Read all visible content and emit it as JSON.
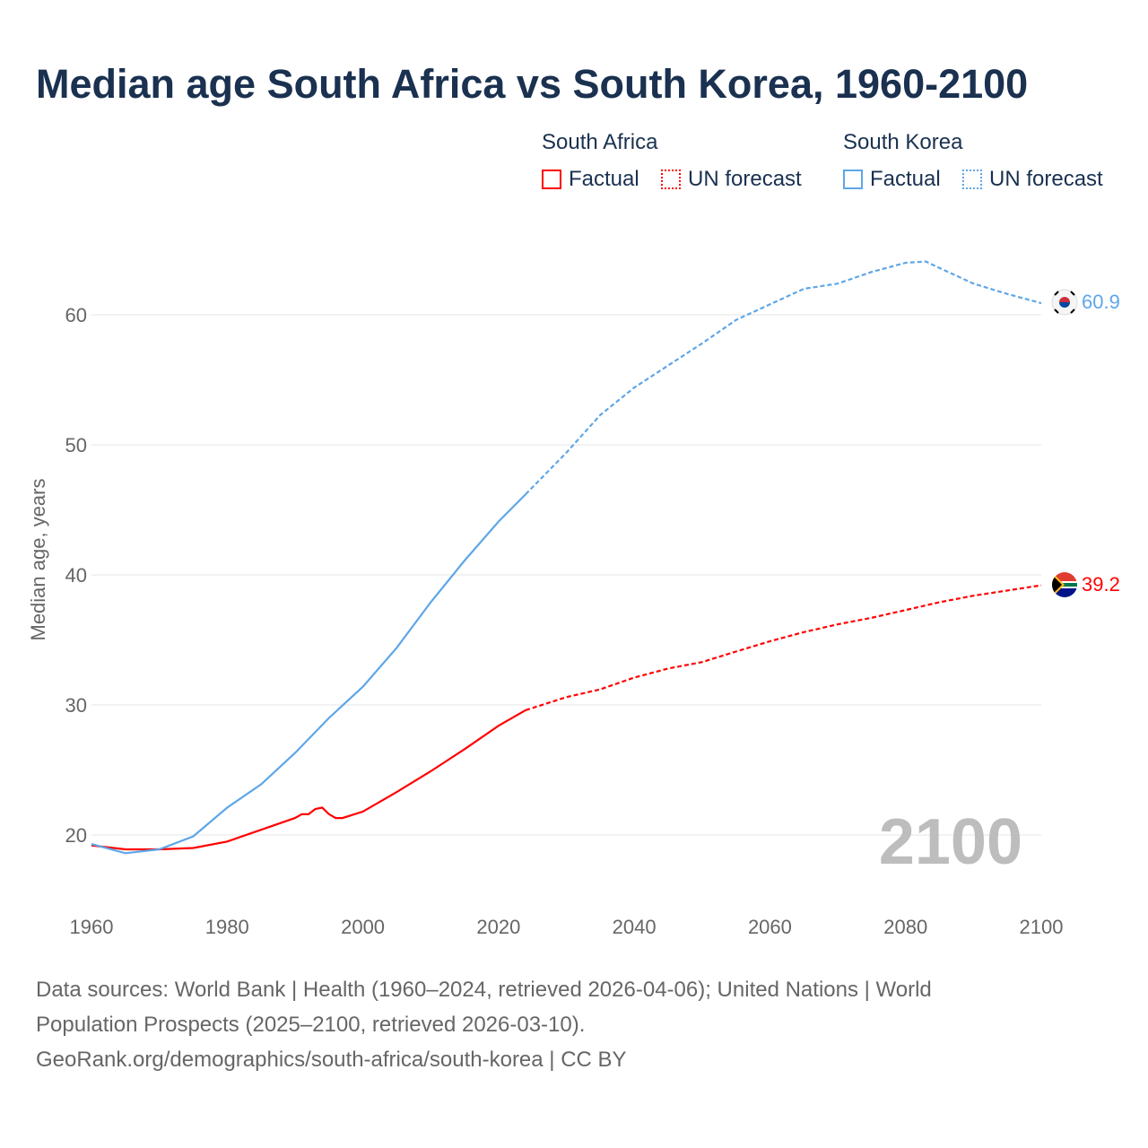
{
  "chart_data": {
    "type": "line",
    "title": "Median age South Africa vs South Korea, 1960-2100",
    "ylabel": "Median age, years",
    "xlabel": "",
    "xlim": [
      1960,
      2100
    ],
    "ylim": [
      15,
      68
    ],
    "x_ticks": [
      "1960",
      "1980",
      "2000",
      "2020",
      "2040",
      "2060",
      "2080",
      "2100"
    ],
    "y_ticks": [
      "20",
      "30",
      "40",
      "50",
      "60"
    ],
    "grid": true,
    "year_watermark": "2100",
    "forecast_start": 2024,
    "legend": {
      "groups": [
        {
          "name": "South Africa",
          "factual": "Factual",
          "forecast": "UN forecast",
          "color": "#ff0000"
        },
        {
          "name": "South Korea",
          "factual": "Factual",
          "forecast": "UN forecast",
          "color": "#5ea6e8"
        }
      ]
    },
    "series": [
      {
        "name": "South Africa",
        "color": "#ff0000",
        "end_label": "39.2",
        "x": [
          1960,
          1965,
          1970,
          1975,
          1980,
          1985,
          1990,
          1991,
          1992,
          1993,
          1994,
          1995,
          1996,
          1997,
          2000,
          2005,
          2010,
          2015,
          2020,
          2024,
          2030,
          2035,
          2040,
          2045,
          2050,
          2055,
          2060,
          2065,
          2070,
          2075,
          2080,
          2085,
          2090,
          2095,
          2100
        ],
        "values": [
          19.2,
          18.9,
          18.9,
          19.0,
          19.5,
          20.4,
          21.3,
          21.6,
          21.6,
          22.0,
          22.1,
          21.6,
          21.3,
          21.3,
          21.8,
          23.3,
          24.9,
          26.6,
          28.4,
          29.6,
          30.6,
          31.2,
          32.1,
          32.8,
          33.3,
          34.1,
          34.9,
          35.6,
          36.2,
          36.7,
          37.3,
          37.9,
          38.4,
          38.8,
          39.2
        ]
      },
      {
        "name": "South Korea",
        "color": "#5ea6e8",
        "end_label": "60.9",
        "x": [
          1960,
          1965,
          1970,
          1975,
          1980,
          1985,
          1990,
          1995,
          2000,
          2005,
          2010,
          2015,
          2020,
          2024,
          2030,
          2035,
          2040,
          2045,
          2050,
          2055,
          2060,
          2065,
          2070,
          2075,
          2080,
          2083,
          2085,
          2090,
          2095,
          2100
        ],
        "values": [
          19.3,
          18.6,
          18.9,
          19.9,
          22.1,
          23.9,
          26.3,
          29.0,
          31.4,
          34.4,
          37.9,
          41.1,
          44.1,
          46.2,
          49.4,
          52.3,
          54.4,
          56.1,
          57.8,
          59.6,
          60.8,
          62.0,
          62.4,
          63.3,
          64.0,
          64.1,
          63.6,
          62.4,
          61.6,
          60.9
        ]
      }
    ]
  },
  "footer": {
    "line1": "Data sources: World Bank | Health (1960–2024, retrieved 2026-04-06); United Nations | World",
    "line2": "Population Prospects (2025–2100, retrieved 2026-03-10).",
    "line3": "GeoRank.org/demographics/south-africa/south-korea | CC BY"
  }
}
